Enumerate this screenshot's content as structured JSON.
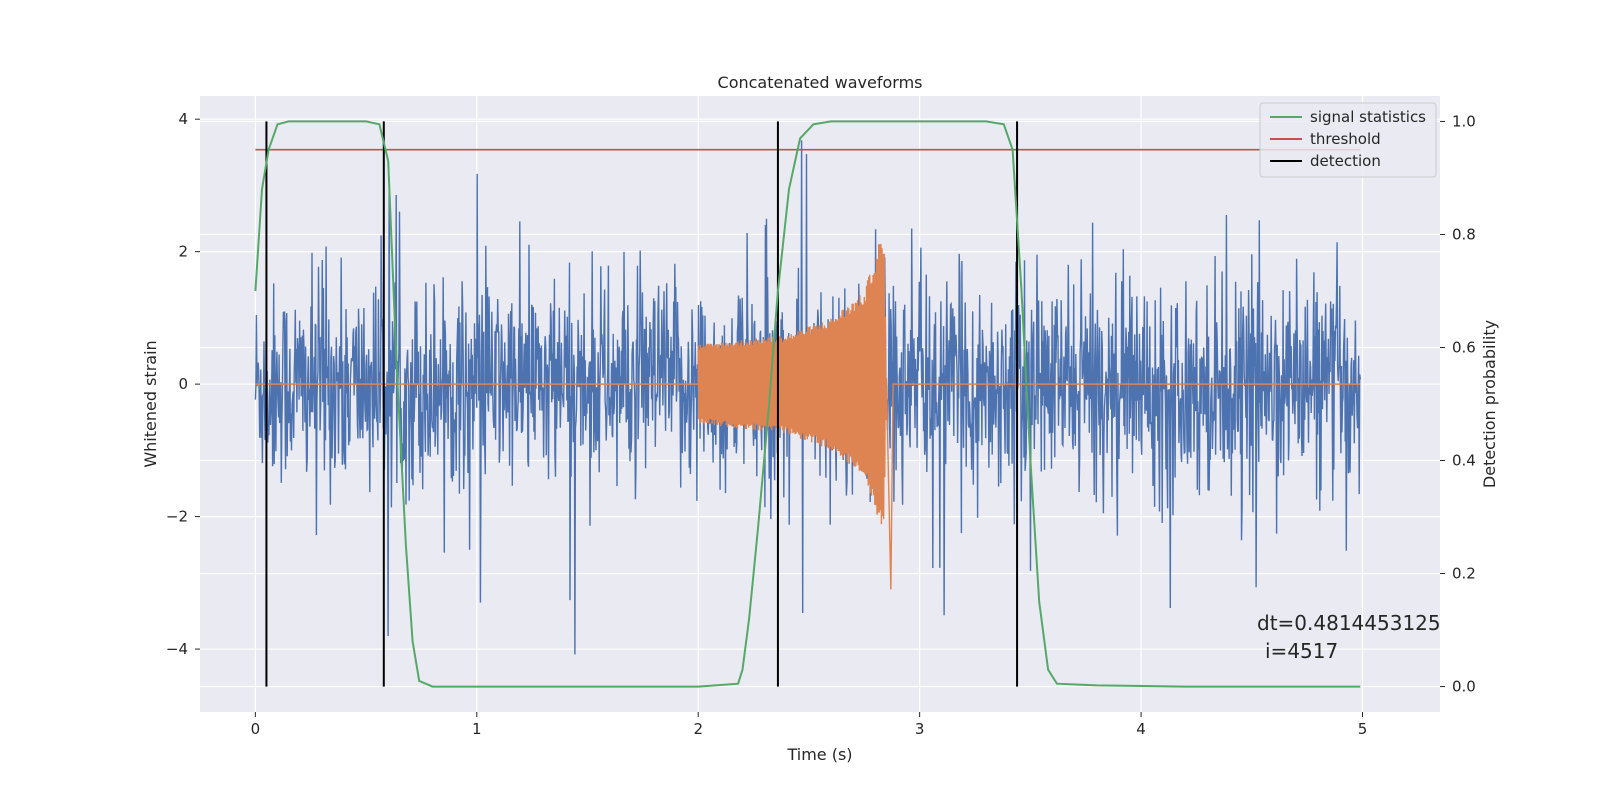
{
  "chart_data": {
    "type": "line",
    "title": "Concatenated waveforms",
    "xlabel": "Time (s)",
    "ylabel": "Whitened strain",
    "y2label": "Detection probability",
    "xlim": [
      -0.25,
      5.35
    ],
    "ylim": [
      -4.95,
      4.35
    ],
    "y2lim": [
      -0.045,
      1.045
    ],
    "xticks": [
      0,
      1,
      2,
      3,
      4,
      5
    ],
    "yticks": [
      -4,
      -2,
      0,
      2,
      4
    ],
    "y2ticks": [
      0.0,
      0.2,
      0.4,
      0.6,
      0.8,
      1.0
    ],
    "y2ticklabels": [
      "0.0",
      "0.2",
      "0.4",
      "0.6",
      "0.8",
      "1.0"
    ],
    "grid": true,
    "legend_position": "top-right",
    "colors": {
      "background": "#eaeaf2",
      "grid": "#ffffff",
      "strain": "#4c72b0",
      "template": "#dd8452",
      "signal_statistics": "#55a868",
      "threshold": "#c44e52",
      "detection": "#000000"
    },
    "series": [
      {
        "name": "signal statistics",
        "axis": "right",
        "x": [
          0.0,
          0.03,
          0.06,
          0.1,
          0.15,
          0.3,
          0.5,
          0.56,
          0.6,
          0.64,
          0.68,
          0.71,
          0.74,
          0.8,
          1.0,
          1.5,
          2.0,
          2.18,
          2.2,
          2.23,
          2.27,
          2.32,
          2.36,
          2.41,
          2.46,
          2.52,
          2.6,
          3.0,
          3.3,
          3.38,
          3.42,
          3.46,
          3.5,
          3.54,
          3.58,
          3.62,
          3.8,
          4.2,
          4.99
        ],
        "values": [
          0.7,
          0.88,
          0.95,
          0.995,
          1.0,
          1.0,
          1.0,
          0.995,
          0.93,
          0.55,
          0.25,
          0.08,
          0.01,
          0.0,
          0.0,
          0.0,
          0.0,
          0.005,
          0.03,
          0.12,
          0.28,
          0.5,
          0.7,
          0.88,
          0.97,
          0.995,
          1.0,
          1.0,
          1.0,
          0.995,
          0.95,
          0.7,
          0.4,
          0.15,
          0.03,
          0.005,
          0.002,
          0.0,
          0.0
        ]
      },
      {
        "name": "threshold",
        "axis": "right",
        "x": [
          0.0,
          4.99
        ],
        "values": [
          0.95,
          0.95
        ]
      },
      {
        "name": "detection",
        "axis": "right",
        "x": [
          0.05,
          0.58,
          2.36,
          3.44
        ],
        "ymin": 0.0,
        "ymax": 1.0
      },
      {
        "axis": "left",
        "x_range": [
          0.0,
          4.99
        ],
        "samples": 2048,
        "typical_range": [
          -1.1,
          1.1
        ],
        "peak_range": [
          -4.5,
          3.9
        ]
      },
      {
        "axis": "left",
        "x_range": [
          2.0,
          2.85
        ],
        "samples_per_sec": 400,
        "envelope": [
          {
            "x": 2.0,
            "amp": 0.6
          },
          {
            "x": 2.4,
            "amp": 0.75
          },
          {
            "x": 2.6,
            "amp": 1.0
          },
          {
            "x": 2.75,
            "amp": 1.4
          },
          {
            "x": 2.82,
            "amp": 2.2
          },
          {
            "x": 2.84,
            "amp": 2.1
          },
          {
            "x": 2.85,
            "amp": 0.1
          }
        ]
      }
    ],
    "legend": [
      "signal statistics",
      "threshold",
      "detection"
    ],
    "annotations": [
      "dt=0.4814453125",
      "i=4517"
    ]
  }
}
